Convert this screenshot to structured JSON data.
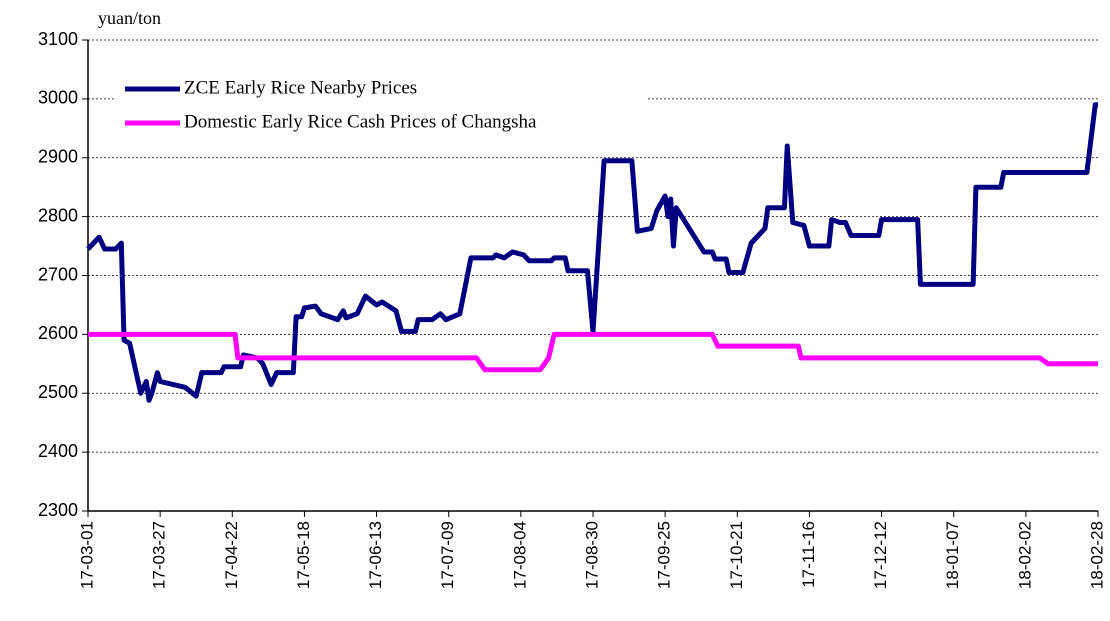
{
  "chart_data": {
    "type": "line",
    "y_unit": "yuan/ton",
    "xlim": [
      "17-03-01",
      "18-02-28"
    ],
    "xticks": [
      "17-03-01",
      "17-03-27",
      "17-04-22",
      "17-05-18",
      "17-06-13",
      "17-07-09",
      "17-08-04",
      "17-08-30",
      "17-09-25",
      "17-10-21",
      "17-11-16",
      "17-12-12",
      "18-01-07",
      "18-02-02",
      "18-02-28"
    ],
    "ylim": [
      2300,
      3100
    ],
    "yticks": [
      2300,
      2400,
      2500,
      2600,
      2700,
      2800,
      2900,
      3000,
      3100
    ],
    "grid": true,
    "legend": "upper left",
    "series": [
      {
        "name": "ZCE Early Rice Nearby Prices",
        "color": "#000080",
        "x": [
          "17-03-01",
          "17-03-05",
          "17-03-07",
          "17-03-11",
          "17-03-13",
          "17-03-14",
          "17-03-16",
          "17-03-20",
          "17-03-22",
          "17-03-23",
          "17-03-24",
          "17-03-26",
          "17-03-27",
          "17-04-05",
          "17-04-09",
          "17-04-11",
          "17-04-18",
          "17-04-19",
          "17-04-25",
          "17-04-26",
          "17-05-01",
          "17-05-03",
          "17-05-06",
          "17-05-08",
          "17-05-14",
          "17-05-15",
          "17-05-17",
          "17-05-18",
          "17-05-22",
          "17-05-24",
          "17-05-30",
          "17-06-01",
          "17-06-02",
          "17-06-06",
          "17-06-09",
          "17-06-13",
          "17-06-15",
          "17-06-20",
          "17-06-22",
          "17-06-27",
          "17-06-28",
          "17-07-03",
          "17-07-06",
          "17-07-08",
          "17-07-13",
          "17-07-17",
          "17-07-25",
          "17-07-26",
          "17-07-29",
          "17-08-01",
          "17-08-05",
          "17-08-07",
          "17-08-15",
          "17-08-16",
          "17-08-20",
          "17-08-21",
          "17-08-28",
          "17-08-30",
          "17-09-03",
          "17-09-13",
          "17-09-15",
          "17-09-20",
          "17-09-22",
          "17-09-25",
          "17-09-26",
          "17-09-27",
          "17-09-28",
          "17-09-29",
          "17-10-09",
          "17-10-12",
          "17-10-13",
          "17-10-17",
          "17-10-18",
          "17-10-23",
          "17-10-26",
          "17-10-31",
          "17-11-01",
          "17-11-07",
          "17-11-08",
          "17-11-10",
          "17-11-14",
          "17-11-16",
          "17-11-23",
          "17-11-24",
          "17-11-27",
          "17-11-29",
          "17-12-01",
          "17-12-11",
          "17-12-12",
          "17-12-25",
          "17-12-26",
          "18-01-14",
          "18-01-15",
          "18-01-24",
          "18-01-25",
          "18-02-24",
          "18-02-27",
          "18-02-28"
        ],
        "values": [
          2745,
          2765,
          2745,
          2745,
          2755,
          2590,
          2585,
          2500,
          2520,
          2488,
          2500,
          2535,
          2520,
          2510,
          2495,
          2535,
          2535,
          2545,
          2545,
          2565,
          2560,
          2550,
          2515,
          2535,
          2535,
          2630,
          2630,
          2645,
          2648,
          2635,
          2625,
          2640,
          2628,
          2635,
          2665,
          2650,
          2655,
          2640,
          2605,
          2605,
          2625,
          2625,
          2635,
          2625,
          2635,
          2730,
          2730,
          2735,
          2730,
          2740,
          2735,
          2725,
          2725,
          2730,
          2730,
          2708,
          2708,
          2605,
          2895,
          2895,
          2775,
          2780,
          2810,
          2835,
          2800,
          2830,
          2750,
          2815,
          2740,
          2740,
          2728,
          2728,
          2705,
          2705,
          2755,
          2780,
          2815,
          2815,
          2920,
          2790,
          2785,
          2750,
          2750,
          2795,
          2790,
          2790,
          2768,
          2768,
          2795,
          2795,
          2685,
          2685,
          2850,
          2850,
          2875,
          2875,
          2990,
          2990
        ]
      },
      {
        "name": "Domestic Early Rice Cash Prices of Changsha",
        "color": "#ff00ff",
        "x": [
          "17-03-01",
          "17-04-23",
          "17-04-24",
          "17-07-19",
          "17-07-22",
          "17-08-11",
          "17-08-14",
          "17-08-16",
          "17-10-12",
          "17-10-14",
          "17-11-12",
          "17-11-13",
          "18-02-07",
          "18-02-10",
          "18-02-28"
        ],
        "values": [
          2600,
          2600,
          2560,
          2560,
          2540,
          2540,
          2560,
          2600,
          2600,
          2580,
          2580,
          2560,
          2560,
          2550,
          2550
        ]
      }
    ]
  }
}
